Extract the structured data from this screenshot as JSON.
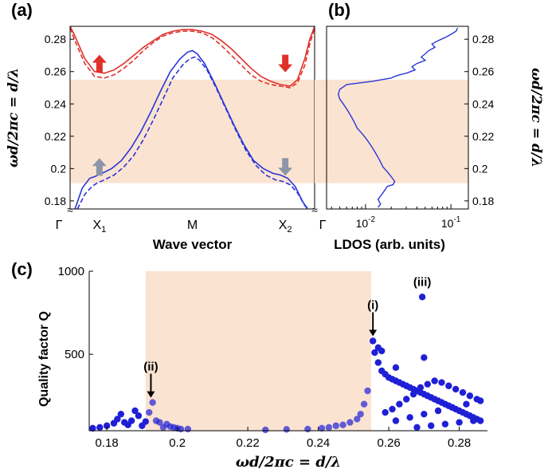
{
  "chart_data": [
    {
      "panel": "(a)",
      "type": "line",
      "xlabel": "Wave vector",
      "ylabel": "ωd/2πc = d/λ",
      "x_ticks": [
        "Γ",
        "X1",
        "M",
        "X2",
        "Γ"
      ],
      "ylim": [
        0.175,
        0.288
      ],
      "y_ticks": [
        0.18,
        0.2,
        0.22,
        0.24,
        0.26,
        0.28
      ],
      "shaded_band": [
        0.191,
        0.255
      ],
      "shade_color": "#fbe3d1",
      "series": [
        {
          "band": "upper",
          "style": "solid",
          "color": "#e0302a",
          "x": [
            0,
            0.02,
            0.06,
            0.1,
            0.14,
            0.18,
            0.22,
            0.26,
            0.3,
            0.34,
            0.38,
            0.42,
            0.46,
            0.5,
            0.54,
            0.58,
            0.62,
            0.66,
            0.7,
            0.74,
            0.78,
            0.82,
            0.86,
            0.9,
            0.93,
            0.96,
            0.98,
            1
          ],
          "y": [
            0.288,
            0.282,
            0.268,
            0.26,
            0.259,
            0.261,
            0.265,
            0.27,
            0.275,
            0.279,
            0.283,
            0.285,
            0.286,
            0.286,
            0.285,
            0.283,
            0.279,
            0.274,
            0.268,
            0.262,
            0.257,
            0.254,
            0.252,
            0.251,
            0.255,
            0.268,
            0.28,
            0.288
          ]
        },
        {
          "band": "upper",
          "style": "dashed",
          "color": "#e0302a",
          "x": [
            0,
            0.02,
            0.06,
            0.1,
            0.14,
            0.18,
            0.22,
            0.26,
            0.3,
            0.34,
            0.38,
            0.42,
            0.46,
            0.5,
            0.54,
            0.58,
            0.62,
            0.66,
            0.7,
            0.74,
            0.78,
            0.82,
            0.86,
            0.9,
            0.93,
            0.96,
            0.98,
            1
          ],
          "y": [
            0.287,
            0.279,
            0.265,
            0.257,
            0.256,
            0.258,
            0.262,
            0.267,
            0.273,
            0.278,
            0.282,
            0.284,
            0.285,
            0.285,
            0.284,
            0.281,
            0.276,
            0.27,
            0.264,
            0.258,
            0.254,
            0.252,
            0.251,
            0.25,
            0.253,
            0.264,
            0.277,
            0.287
          ]
        },
        {
          "band": "lower",
          "style": "solid",
          "color": "#2a35d8",
          "x": [
            0.02,
            0.05,
            0.08,
            0.1,
            0.13,
            0.17,
            0.21,
            0.25,
            0.29,
            0.33,
            0.37,
            0.41,
            0.45,
            0.48,
            0.5,
            0.52,
            0.55,
            0.59,
            0.63,
            0.67,
            0.71,
            0.75,
            0.79,
            0.83,
            0.86,
            0.89,
            0.92,
            0.95,
            0.97
          ],
          "y": [
            0.175,
            0.188,
            0.194,
            0.195,
            0.197,
            0.2,
            0.205,
            0.213,
            0.223,
            0.235,
            0.248,
            0.26,
            0.268,
            0.272,
            0.273,
            0.271,
            0.265,
            0.253,
            0.24,
            0.227,
            0.215,
            0.205,
            0.2,
            0.197,
            0.196,
            0.194,
            0.189,
            0.18,
            0.175
          ]
        },
        {
          "band": "lower",
          "style": "dashed",
          "color": "#2a35d8",
          "x": [
            0.03,
            0.06,
            0.09,
            0.11,
            0.14,
            0.18,
            0.22,
            0.26,
            0.3,
            0.34,
            0.38,
            0.42,
            0.46,
            0.49,
            0.51,
            0.53,
            0.56,
            0.6,
            0.64,
            0.68,
            0.72,
            0.76,
            0.8,
            0.84,
            0.87,
            0.9,
            0.93,
            0.96,
            0.98
          ],
          "y": [
            0.175,
            0.184,
            0.189,
            0.191,
            0.193,
            0.196,
            0.201,
            0.208,
            0.218,
            0.23,
            0.243,
            0.256,
            0.264,
            0.268,
            0.269,
            0.267,
            0.261,
            0.249,
            0.236,
            0.223,
            0.211,
            0.202,
            0.196,
            0.193,
            0.192,
            0.19,
            0.185,
            0.177,
            0.175
          ]
        }
      ],
      "annotations": [
        {
          "type": "arrow-up",
          "x": 0.12,
          "y": 0.265,
          "color": "#e0302a"
        },
        {
          "type": "arrow-down",
          "x": 0.88,
          "y": 0.265,
          "color": "#e0302a"
        },
        {
          "type": "arrow-up",
          "x": 0.12,
          "y": 0.201,
          "color": "#8c96a8"
        },
        {
          "type": "arrow-down",
          "x": 0.88,
          "y": 0.201,
          "color": "#8c96a8"
        }
      ]
    },
    {
      "panel": "(b)",
      "type": "line",
      "xlabel": "LDOS (arb. units)",
      "ylabel": "ωd/2πc = d/λ",
      "x_scale": "log",
      "xlim": [
        0.0035,
        0.16
      ],
      "x_ticks": [
        0.01,
        0.1
      ],
      "ylim": [
        0.175,
        0.288
      ],
      "y_ticks": [
        0.18,
        0.2,
        0.22,
        0.24,
        0.26,
        0.28
      ],
      "shaded_band": [
        0.191,
        0.255
      ],
      "series": [
        {
          "color": "#2a35d8",
          "x": [
            0.12,
            0.115,
            0.1,
            0.085,
            0.07,
            0.06,
            0.065,
            0.055,
            0.05,
            0.045,
            0.05,
            0.04,
            0.035,
            0.038,
            0.03,
            0.025,
            0.022,
            0.02,
            0.012,
            0.006,
            0.005,
            0.0048,
            0.005,
            0.0055,
            0.006,
            0.0065,
            0.007,
            0.0075,
            0.008,
            0.009,
            0.01,
            0.011,
            0.012,
            0.013,
            0.014,
            0.015,
            0.016,
            0.018,
            0.02,
            0.022,
            0.021,
            0.018,
            0.017,
            0.016,
            0.015,
            0.014,
            0.015,
            0.014
          ],
          "y": [
            0.287,
            0.285,
            0.283,
            0.281,
            0.279,
            0.277,
            0.275,
            0.273,
            0.271,
            0.269,
            0.267,
            0.265,
            0.263,
            0.261,
            0.259,
            0.258,
            0.257,
            0.256,
            0.254,
            0.252,
            0.249,
            0.246,
            0.243,
            0.24,
            0.237,
            0.234,
            0.231,
            0.228,
            0.225,
            0.222,
            0.219,
            0.216,
            0.213,
            0.21,
            0.207,
            0.204,
            0.201,
            0.198,
            0.195,
            0.192,
            0.19,
            0.189,
            0.187,
            0.185,
            0.183,
            0.181,
            0.178,
            0.176
          ]
        }
      ]
    },
    {
      "panel": "(c)",
      "type": "scatter",
      "xlabel": "ωd/2πc = d/λ",
      "ylabel": "Quality factor Q",
      "xlim": [
        0.175,
        0.288
      ],
      "ylim": [
        40,
        1000
      ],
      "x_ticks": [
        0.18,
        0.2,
        0.22,
        0.24,
        0.26,
        0.28
      ],
      "y_ticks": [
        500,
        1000
      ],
      "shaded_band": [
        0.191,
        0.255
      ],
      "point_color": "#1f1fd6",
      "x": [
        0.176,
        0.178,
        0.18,
        0.182,
        0.183,
        0.184,
        0.185,
        0.186,
        0.187,
        0.188,
        0.189,
        0.19,
        0.191,
        0.192,
        0.193,
        0.194,
        0.195,
        0.196,
        0.197,
        0.198,
        0.199,
        0.2,
        0.201,
        0.203,
        0.225,
        0.231,
        0.237,
        0.241,
        0.243,
        0.245,
        0.247,
        0.249,
        0.251,
        0.252,
        0.253,
        0.254,
        0.2555,
        0.256,
        0.257,
        0.258,
        0.259,
        0.26,
        0.261,
        0.262,
        0.263,
        0.264,
        0.265,
        0.266,
        0.267,
        0.268,
        0.269,
        0.27,
        0.271,
        0.272,
        0.273,
        0.274,
        0.275,
        0.276,
        0.277,
        0.278,
        0.279,
        0.28,
        0.281,
        0.282,
        0.283,
        0.284,
        0.285,
        0.286,
        0.259,
        0.261,
        0.263,
        0.265,
        0.267,
        0.269,
        0.271,
        0.273,
        0.275,
        0.277,
        0.279,
        0.281,
        0.283,
        0.285,
        0.262,
        0.266,
        0.27,
        0.274,
        0.278,
        0.282,
        0.286,
        0.268,
        0.272,
        0.276,
        0.28,
        0.284,
        0.27,
        0.2695,
        0.262,
        0.258,
        0.257
      ],
      "y": [
        55,
        60,
        70,
        85,
        110,
        140,
        90,
        75,
        100,
        160,
        130,
        70,
        95,
        150,
        210,
        100,
        90,
        60,
        80,
        65,
        60,
        55,
        50,
        50,
        45,
        48,
        50,
        55,
        60,
        70,
        75,
        90,
        110,
        140,
        200,
        280,
        580,
        510,
        450,
        400,
        380,
        360,
        350,
        340,
        330,
        320,
        310,
        300,
        290,
        280,
        270,
        260,
        250,
        240,
        230,
        220,
        210,
        200,
        190,
        180,
        170,
        160,
        150,
        140,
        130,
        120,
        110,
        100,
        150,
        170,
        200,
        230,
        260,
        300,
        320,
        340,
        330,
        310,
        290,
        270,
        250,
        230,
        100,
        120,
        140,
        160,
        180,
        200,
        220,
        60,
        70,
        80,
        90,
        100,
        480,
        845,
        420,
        520,
        540
      ],
      "annotations": [
        {
          "label": "(i)",
          "x": 0.2555,
          "y": 580
        },
        {
          "label": "(ii)",
          "x": 0.1925,
          "y": 210
        },
        {
          "label": "(iii)",
          "x": 0.2695,
          "y": 845
        }
      ]
    }
  ],
  "labels": {
    "panel_a": "(a)",
    "panel_b": "(b)",
    "panel_c": "(c)",
    "gamma": "Γ",
    "x_letter": "X",
    "sub1": "1",
    "sub2": "2",
    "m": "M"
  }
}
